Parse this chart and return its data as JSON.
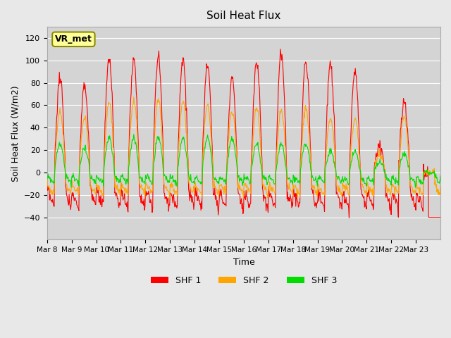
{
  "title": "Soil Heat Flux",
  "ylabel": "Soil Heat Flux (W/m2)",
  "xlabel": "Time",
  "ylim": [
    -60,
    130
  ],
  "yticks": [
    -40,
    -20,
    0,
    20,
    40,
    60,
    80,
    100,
    120
  ],
  "background_color": "#e8e8e8",
  "plot_bg_color": "#d4d4d4",
  "shf1_color": "#ff0000",
  "shf2_color": "#ffa500",
  "shf3_color": "#00dd00",
  "legend_labels": [
    "SHF 1",
    "SHF 2",
    "SHF 3"
  ],
  "annotation_text": "VR_met",
  "annotation_bg": "#ffff99",
  "annotation_border": "#8B8B00",
  "x_tick_labels": [
    "Mar 8",
    "Mar 9",
    "Mar 10",
    "Mar 11",
    "Mar 12",
    "Mar 13",
    "Mar 14",
    "Mar 15",
    "Mar 16",
    "Mar 17",
    "Mar 18",
    "Mar 19",
    "Mar 20",
    "Mar 21",
    "Mar 22",
    "Mar 23"
  ],
  "n_days": 16,
  "points_per_day": 48,
  "peak1": [
    84,
    78,
    101,
    100,
    103,
    102,
    97,
    84,
    99,
    107,
    100,
    97,
    92,
    24,
    64,
    0
  ],
  "peak2": [
    55,
    48,
    63,
    64,
    65,
    63,
    61,
    55,
    57,
    55,
    57,
    49,
    47,
    18,
    50,
    0
  ],
  "peak3": [
    25,
    22,
    31,
    31,
    31,
    30,
    31,
    30,
    25,
    25,
    25,
    19,
    19,
    10,
    17,
    0
  ]
}
